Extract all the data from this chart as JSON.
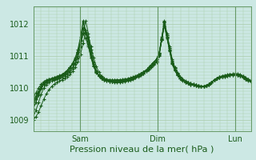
{
  "fig_bg_color": "#cce8e4",
  "plot_bg_color": "#cce8e4",
  "grid_color": "#aaccaa",
  "line_color": "#1a5c1a",
  "marker_color": "#1a5c1a",
  "xlabel": "Pression niveau de la mer( hPa )",
  "xlabel_fontsize": 8,
  "tick_fontsize": 7,
  "yticks": [
    1009,
    1010,
    1011,
    1012
  ],
  "ylim": [
    1008.65,
    1012.55
  ],
  "xlim": [
    0,
    84
  ],
  "xtick_positions": [
    18,
    48,
    78
  ],
  "xtick_labels": [
    "Sam",
    "Dim",
    "Lun"
  ],
  "series": [
    [
      1009.6,
      1009.75,
      1009.9,
      1010.05,
      1010.15,
      1010.2,
      1010.25,
      1010.28,
      1010.3,
      1010.32,
      1010.35,
      1010.38,
      1010.42,
      1010.48,
      1010.55,
      1010.65,
      1010.8,
      1011.0,
      1011.5,
      1012.1,
      1011.8,
      1011.4,
      1011.0,
      1010.7,
      1010.5,
      1010.4,
      1010.35,
      1010.3,
      1010.28,
      1010.26,
      1010.25,
      1010.25,
      1010.25,
      1010.25,
      1010.26,
      1010.27,
      1010.28,
      1010.3,
      1010.32,
      1010.35,
      1010.38,
      1010.42,
      1010.46,
      1010.52,
      1010.58,
      1010.65,
      1010.72,
      1010.8,
      1011.0,
      1011.5,
      1012.1,
      1011.7,
      1011.3,
      1010.9,
      1010.65,
      1010.48,
      1010.35,
      1010.28,
      1010.22,
      1010.18,
      1010.15,
      1010.12,
      1010.1,
      1010.08,
      1010.05,
      1010.05,
      1010.08,
      1010.12,
      1010.18,
      1010.25,
      1010.3,
      1010.35,
      1010.38,
      1010.4,
      1010.42,
      1010.43,
      1010.44,
      1010.45,
      1010.44,
      1010.42,
      1010.38,
      1010.32,
      1010.28,
      1010.24
    ],
    [
      1009.7,
      1009.85,
      1010.0,
      1010.12,
      1010.2,
      1010.25,
      1010.28,
      1010.3,
      1010.32,
      1010.35,
      1010.38,
      1010.42,
      1010.48,
      1010.55,
      1010.65,
      1010.78,
      1010.95,
      1011.2,
      1011.6,
      1012.05,
      1011.75,
      1011.35,
      1010.95,
      1010.68,
      1010.48,
      1010.38,
      1010.33,
      1010.28,
      1010.26,
      1010.25,
      1010.25,
      1010.25,
      1010.26,
      1010.26,
      1010.27,
      1010.28,
      1010.3,
      1010.32,
      1010.35,
      1010.38,
      1010.42,
      1010.46,
      1010.5,
      1010.55,
      1010.62,
      1010.68,
      1010.75,
      1010.83,
      1011.02,
      1011.52,
      1012.05,
      1011.65,
      1011.25,
      1010.85,
      1010.62,
      1010.46,
      1010.34,
      1010.27,
      1010.21,
      1010.17,
      1010.14,
      1010.12,
      1010.1,
      1010.08,
      1010.05,
      1010.05,
      1010.08,
      1010.12,
      1010.18,
      1010.25,
      1010.3,
      1010.35,
      1010.37,
      1010.38,
      1010.4,
      1010.42,
      1010.43,
      1010.44,
      1010.43,
      1010.41,
      1010.37,
      1010.31,
      1010.27,
      1010.23
    ],
    [
      1009.1,
      1009.3,
      1009.55,
      1009.8,
      1010.0,
      1010.1,
      1010.18,
      1010.22,
      1010.25,
      1010.28,
      1010.3,
      1010.33,
      1010.37,
      1010.42,
      1010.5,
      1010.6,
      1010.75,
      1010.95,
      1011.3,
      1011.7,
      1012.1,
      1011.7,
      1011.2,
      1010.8,
      1010.55,
      1010.4,
      1010.32,
      1010.27,
      1010.24,
      1010.22,
      1010.2,
      1010.2,
      1010.2,
      1010.2,
      1010.21,
      1010.22,
      1010.24,
      1010.26,
      1010.29,
      1010.32,
      1010.36,
      1010.41,
      1010.46,
      1010.52,
      1010.6,
      1010.68,
      1010.76,
      1010.85,
      1011.05,
      1011.55,
      1012.05,
      1011.6,
      1011.2,
      1010.8,
      1010.58,
      1010.42,
      1010.3,
      1010.24,
      1010.18,
      1010.14,
      1010.11,
      1010.09,
      1010.08,
      1010.06,
      1010.04,
      1010.04,
      1010.07,
      1010.11,
      1010.17,
      1010.24,
      1010.29,
      1010.32,
      1010.34,
      1010.36,
      1010.38,
      1010.4,
      1010.41,
      1010.42,
      1010.4,
      1010.38,
      1010.34,
      1010.28,
      1010.24,
      1010.2
    ],
    [
      1009.35,
      1009.55,
      1009.78,
      1010.0,
      1010.12,
      1010.18,
      1010.23,
      1010.27,
      1010.3,
      1010.33,
      1010.36,
      1010.4,
      1010.45,
      1010.52,
      1010.62,
      1010.74,
      1010.9,
      1011.12,
      1011.48,
      1011.88,
      1011.8,
      1011.5,
      1011.1,
      1010.75,
      1010.52,
      1010.39,
      1010.31,
      1010.26,
      1010.23,
      1010.21,
      1010.2,
      1010.2,
      1010.2,
      1010.21,
      1010.22,
      1010.23,
      1010.25,
      1010.28,
      1010.31,
      1010.35,
      1010.39,
      1010.44,
      1010.5,
      1010.56,
      1010.64,
      1010.72,
      1010.81,
      1010.9,
      1011.1,
      1011.6,
      1012.08,
      1011.65,
      1011.25,
      1010.85,
      1010.62,
      1010.46,
      1010.34,
      1010.27,
      1010.21,
      1010.17,
      1010.14,
      1010.12,
      1010.1,
      1010.08,
      1010.05,
      1010.05,
      1010.08,
      1010.12,
      1010.18,
      1010.25,
      1010.3,
      1010.34,
      1010.36,
      1010.38,
      1010.4,
      1010.42,
      1010.43,
      1010.44,
      1010.42,
      1010.39,
      1010.35,
      1010.29,
      1010.25,
      1010.21
    ],
    [
      1009.0,
      1009.1,
      1009.25,
      1009.45,
      1009.65,
      1009.82,
      1009.95,
      1010.05,
      1010.12,
      1010.18,
      1010.22,
      1010.26,
      1010.3,
      1010.35,
      1010.42,
      1010.52,
      1010.65,
      1010.82,
      1011.05,
      1011.4,
      1011.75,
      1011.6,
      1011.3,
      1010.95,
      1010.68,
      1010.5,
      1010.38,
      1010.3,
      1010.25,
      1010.22,
      1010.2,
      1010.18,
      1010.18,
      1010.18,
      1010.19,
      1010.2,
      1010.22,
      1010.25,
      1010.28,
      1010.32,
      1010.37,
      1010.42,
      1010.48,
      1010.55,
      1010.63,
      1010.72,
      1010.81,
      1010.9,
      1011.08,
      1011.5,
      1011.95,
      1011.55,
      1011.15,
      1010.75,
      1010.54,
      1010.4,
      1010.3,
      1010.23,
      1010.18,
      1010.14,
      1010.11,
      1010.09,
      1010.07,
      1010.06,
      1010.04,
      1010.04,
      1010.07,
      1010.11,
      1010.17,
      1010.24,
      1010.29,
      1010.32,
      1010.34,
      1010.36,
      1010.38,
      1010.4,
      1010.41,
      1010.42,
      1010.4,
      1010.37,
      1010.33,
      1010.27,
      1010.23,
      1010.19
    ],
    [
      1009.55,
      1009.7,
      1009.88,
      1010.05,
      1010.17,
      1010.22,
      1010.27,
      1010.3,
      1010.33,
      1010.36,
      1010.39,
      1010.43,
      1010.48,
      1010.55,
      1010.64,
      1010.76,
      1010.9,
      1011.1,
      1011.4,
      1011.72,
      1011.55,
      1011.3,
      1010.95,
      1010.7,
      1010.5,
      1010.38,
      1010.31,
      1010.26,
      1010.23,
      1010.21,
      1010.2,
      1010.2,
      1010.2,
      1010.21,
      1010.22,
      1010.23,
      1010.25,
      1010.28,
      1010.31,
      1010.35,
      1010.39,
      1010.44,
      1010.5,
      1010.56,
      1010.64,
      1010.72,
      1010.81,
      1010.9,
      1011.08,
      1011.5,
      1011.95,
      1011.58,
      1011.18,
      1010.78,
      1010.56,
      1010.4,
      1010.3,
      1010.24,
      1010.18,
      1010.14,
      1010.11,
      1010.09,
      1010.08,
      1010.06,
      1010.04,
      1010.04,
      1010.07,
      1010.11,
      1010.17,
      1010.24,
      1010.29,
      1010.33,
      1010.35,
      1010.37,
      1010.39,
      1010.41,
      1010.42,
      1010.43,
      1010.41,
      1010.38,
      1010.34,
      1010.28,
      1010.24,
      1010.2
    ],
    [
      1009.5,
      1009.65,
      1009.82,
      1009.98,
      1010.11,
      1010.18,
      1010.23,
      1010.27,
      1010.3,
      1010.33,
      1010.36,
      1010.4,
      1010.45,
      1010.52,
      1010.62,
      1010.74,
      1010.9,
      1011.12,
      1011.48,
      1011.88,
      1011.72,
      1011.45,
      1011.1,
      1010.75,
      1010.52,
      1010.38,
      1010.3,
      1010.25,
      1010.22,
      1010.2,
      1010.19,
      1010.19,
      1010.19,
      1010.2,
      1010.21,
      1010.22,
      1010.24,
      1010.27,
      1010.3,
      1010.34,
      1010.38,
      1010.43,
      1010.49,
      1010.55,
      1010.63,
      1010.71,
      1010.8,
      1010.9,
      1011.1,
      1011.55,
      1012.0,
      1011.6,
      1011.2,
      1010.8,
      1010.58,
      1010.42,
      1010.31,
      1010.25,
      1010.19,
      1010.15,
      1010.12,
      1010.1,
      1010.08,
      1010.07,
      1010.05,
      1010.05,
      1010.08,
      1010.12,
      1010.18,
      1010.25,
      1010.3,
      1010.33,
      1010.35,
      1010.37,
      1010.39,
      1010.41,
      1010.42,
      1010.43,
      1010.41,
      1010.38,
      1010.34,
      1010.28,
      1010.24,
      1010.2
    ]
  ]
}
